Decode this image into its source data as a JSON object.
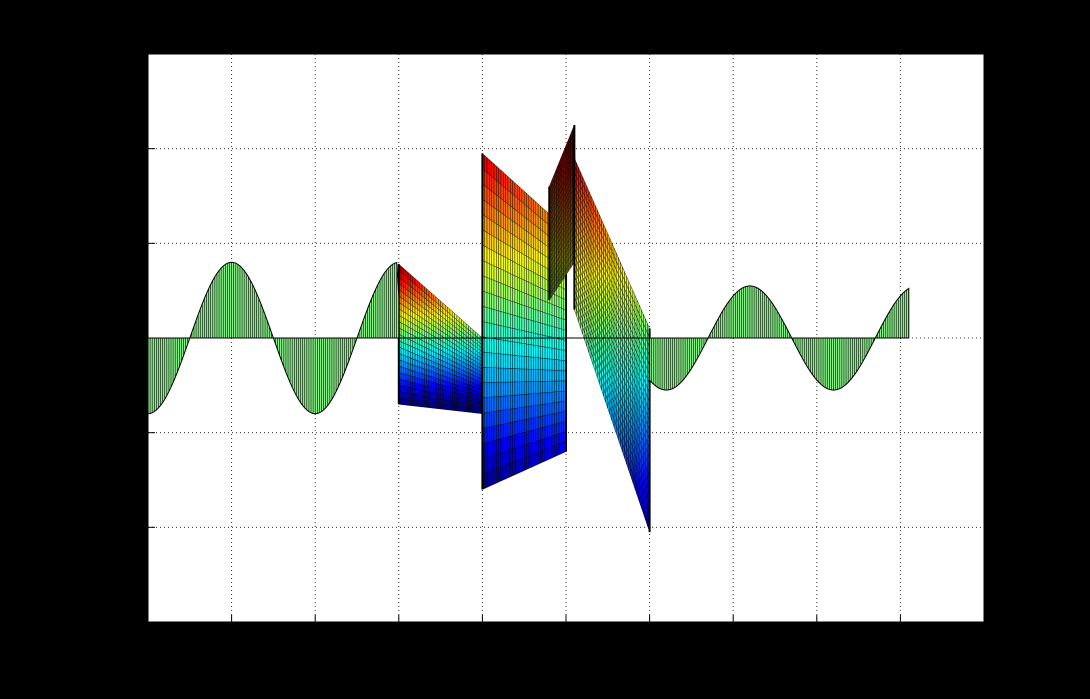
{
  "chart_data": {
    "type": "area",
    "title": "",
    "xlabel": "",
    "ylabel": "",
    "xlim": [
      -5,
      5
    ],
    "ylim": [
      -3,
      3
    ],
    "grid": true,
    "background_color": "#000000",
    "axes_color": "#ffffff",
    "series": [
      {
        "style": "stem-filled",
        "fill": "#88f088",
        "x_range": [
          -5,
          4.1
        ],
        "samples": [
          {
            "x": -5.0,
            "y": -0.8
          },
          {
            "x": -4.1,
            "y": 0.8
          },
          {
            "x": -3.1,
            "y": -0.8
          },
          {
            "x": -2.1,
            "y": 0.8
          },
          {
            "x": 2.2,
            "y": 0.55
          },
          {
            "x": 3.2,
            "y": -0.55
          },
          {
            "x": 4.1,
            "y": 0.22
          }
        ]
      },
      {
        "style": "surface",
        "colormap": "jet",
        "x_range": [
          -2.0,
          1.0
        ],
        "panels": [
          {
            "x": [
              -2.0,
              -1.0
            ],
            "top": [
              0.78,
              0.0
            ],
            "bottom": [
              -0.7,
              -0.8
            ],
            "z_range": [
              -0.7,
              0.8
            ]
          },
          {
            "x": [
              -1.0,
              0.0
            ],
            "top": [
              1.95,
              1.15
            ],
            "bottom": [
              -1.6,
              -1.2
            ],
            "z_range": [
              -1.6,
              2.3
            ]
          },
          {
            "x": [
              -0.2,
              0.1
            ],
            "top": [
              1.6,
              2.25
            ],
            "bottom": [
              0.4,
              0.8
            ],
            "z_range": [
              -1.6,
              2.3
            ]
          },
          {
            "x": [
              0.1,
              1.0
            ],
            "top": [
              1.9,
              0.1
            ],
            "bottom": [
              0.3,
              -2.05
            ],
            "z_range": [
              -2.1,
              2.3
            ]
          }
        ]
      }
    ]
  }
}
